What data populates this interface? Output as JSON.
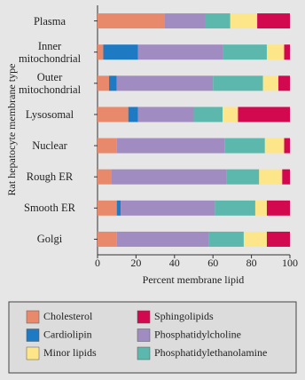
{
  "chart_data": {
    "type": "stacked_bar_horizontal",
    "categories": [
      "Plasma",
      "Inner mitochondrial",
      "Outer mitochondrial",
      "Lysosomal",
      "Nuclear",
      "Rough ER",
      "Smooth ER",
      "Golgi"
    ],
    "series": [
      {
        "name": "Cholesterol",
        "color": "#e8896b",
        "values": [
          35,
          3,
          6,
          16,
          10,
          7,
          10,
          10
        ]
      },
      {
        "name": "Cardiolipin",
        "color": "#1f7ac4",
        "values": [
          0,
          18,
          4,
          5,
          0,
          0,
          2,
          0
        ]
      },
      {
        "name": "Phosphatidylcholine",
        "color": "#a08cc0",
        "values": [
          21,
          44,
          50,
          29,
          56,
          60,
          49,
          48
        ]
      },
      {
        "name": "Phosphatidylethanolamine",
        "color": "#5cb8ad",
        "values": [
          13,
          23,
          26,
          15,
          21,
          17,
          21,
          18
        ]
      },
      {
        "name": "Minor lipids",
        "color": "#fde58a",
        "values": [
          14,
          9,
          8,
          8,
          10,
          12,
          6,
          12
        ]
      },
      {
        "name": "Sphingolipids",
        "color": "#d3094f",
        "values": [
          17,
          3,
          6,
          27,
          3,
          4,
          12,
          12
        ]
      }
    ],
    "x_label": "Percent membrane lipid",
    "y_label": "Rat hepatocyte membrane type",
    "xlim": [
      0,
      100
    ],
    "xticks": [
      0,
      20,
      40,
      60,
      80,
      100
    ]
  }
}
